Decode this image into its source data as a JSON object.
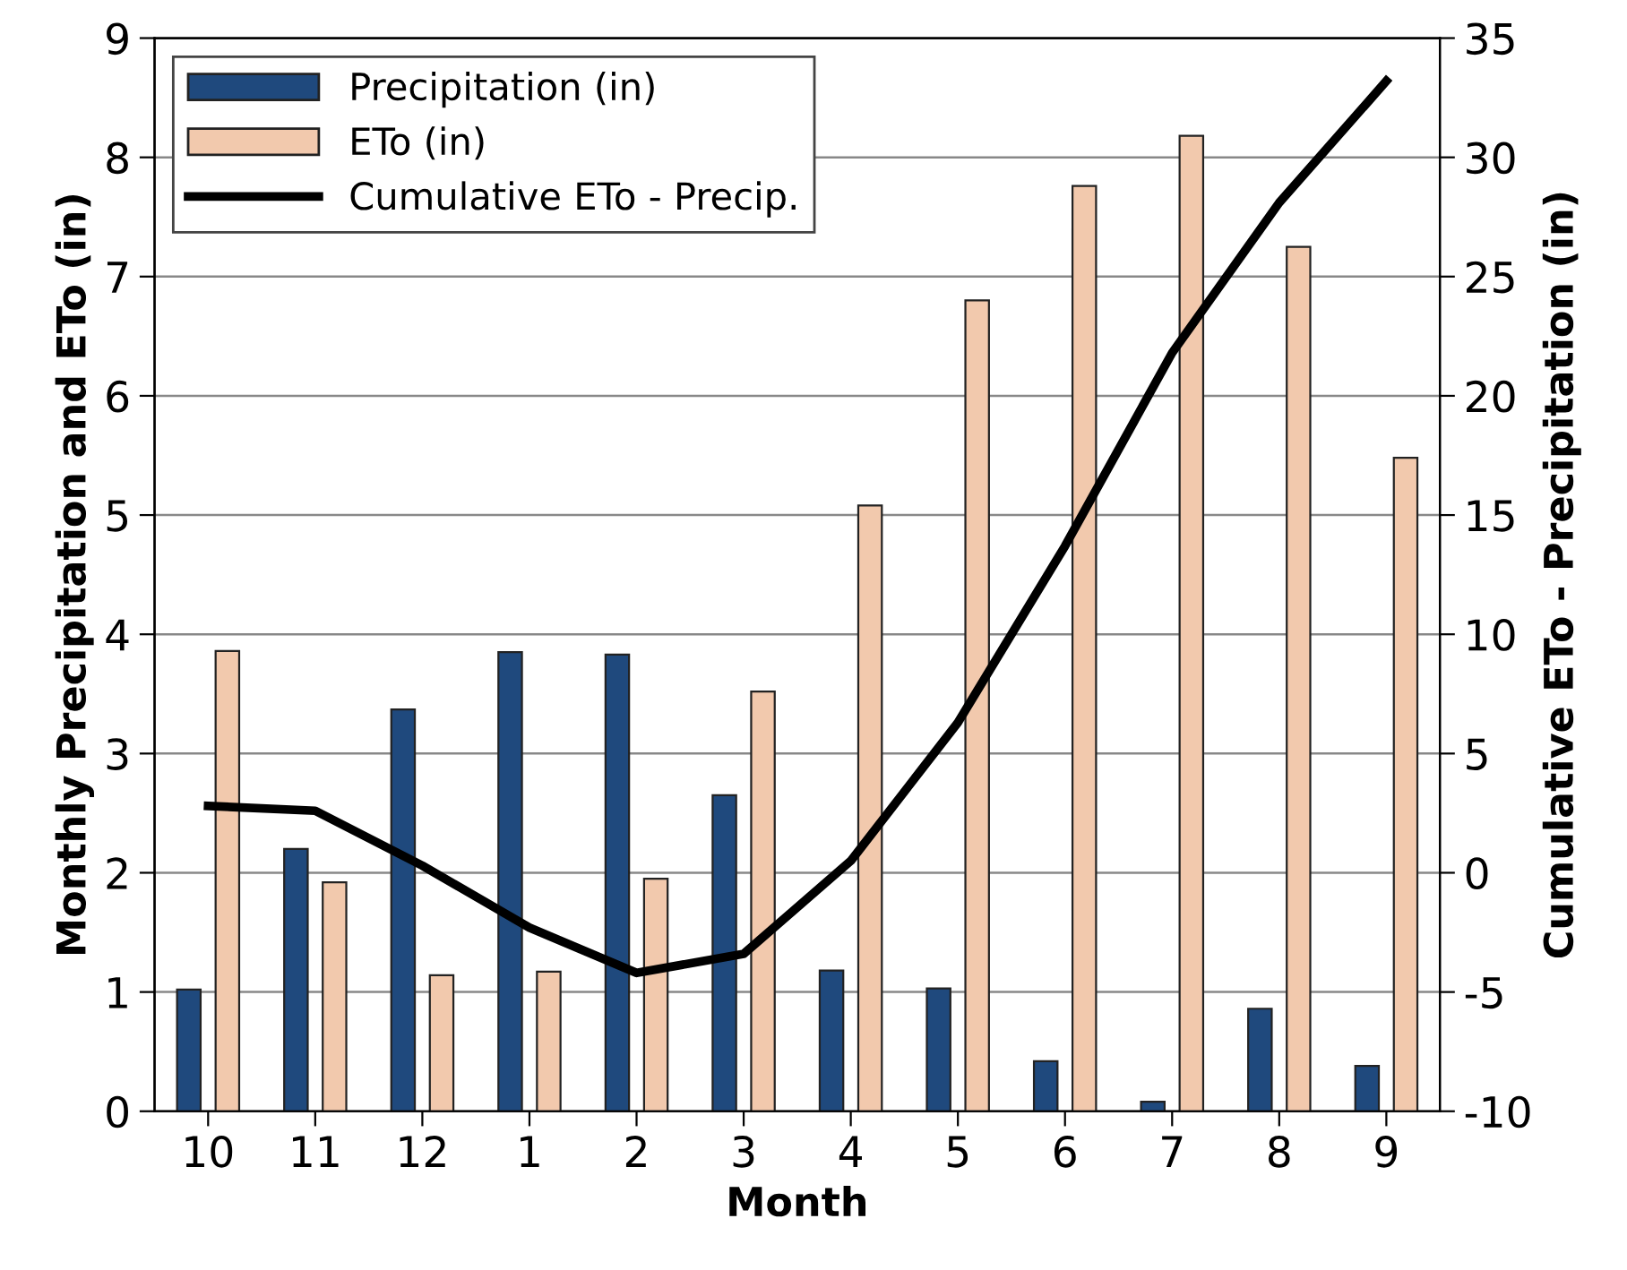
{
  "chart_data": {
    "type": "bar",
    "xlabel": "Month",
    "ylabel": "Monthly Precipitation and ETo (in)",
    "y2label": "Cumulative ETo - Precipitation (in)",
    "categories": [
      "10",
      "11",
      "12",
      "1",
      "2",
      "3",
      "4",
      "5",
      "6",
      "7",
      "8",
      "9"
    ],
    "series": [
      {
        "name": "Precipitation (in)",
        "color": "#1f497d",
        "values": [
          1.02,
          2.2,
          3.37,
          3.85,
          3.83,
          2.65,
          1.18,
          1.03,
          0.42,
          0.08,
          0.86,
          0.38
        ]
      },
      {
        "name": "ETo (in)",
        "color": "#f2c9ad",
        "values": [
          3.86,
          1.92,
          1.14,
          1.17,
          1.95,
          3.52,
          5.08,
          6.8,
          7.76,
          8.18,
          7.25,
          5.48
        ]
      },
      {
        "name": "Cumulative ETo - Precip.",
        "type": "line",
        "axis": "y2",
        "color": "#000000",
        "values": [
          2.8,
          2.6,
          0.3,
          -2.3,
          -4.2,
          -3.4,
          0.5,
          6.3,
          13.7,
          21.8,
          28.1,
          33.2
        ]
      }
    ],
    "ylim": [
      0,
      9
    ],
    "yticks": [
      0,
      1,
      2,
      3,
      4,
      5,
      6,
      7,
      8,
      9
    ],
    "y2lim": [
      -10,
      35
    ],
    "y2ticks": [
      -10,
      -5,
      0,
      5,
      10,
      15,
      20,
      25,
      30,
      35
    ],
    "grid": "y",
    "legend": "top left",
    "marker": "none",
    "line_style": "solid"
  }
}
